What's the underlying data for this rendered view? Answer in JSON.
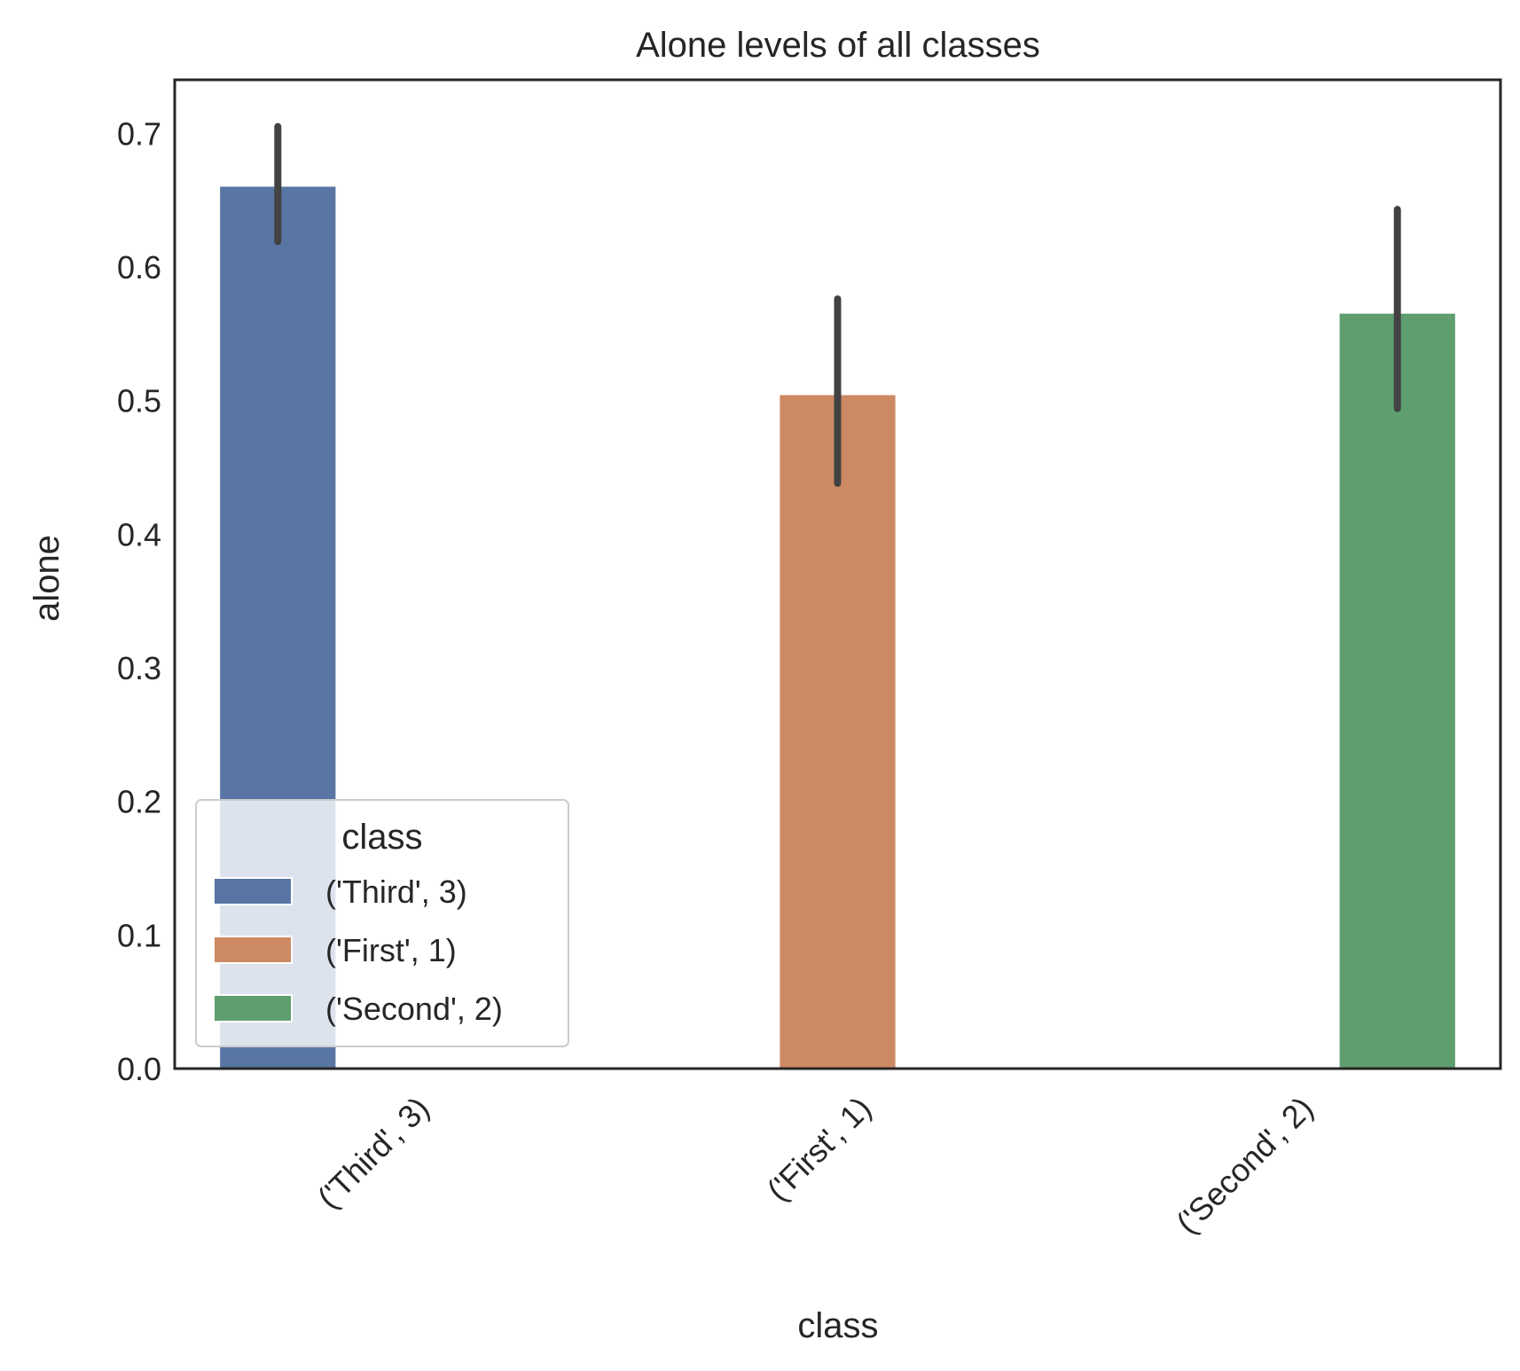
{
  "chart_data": {
    "type": "bar",
    "title": "Alone levels of all classes",
    "xlabel": "class",
    "ylabel": "alone",
    "categories": [
      "('Third', 3)",
      "('First', 1)",
      "('Second', 2)"
    ],
    "values": [
      0.66,
      0.504,
      0.565
    ],
    "error_bars": [
      {
        "low": 0.619,
        "high": 0.705
      },
      {
        "low": 0.438,
        "high": 0.576
      },
      {
        "low": 0.494,
        "high": 0.643
      }
    ],
    "colors": [
      "#5875a4",
      "#cc8963",
      "#5f9e6e"
    ],
    "error_bar_color": "#424242",
    "ylim": [
      0,
      0.74
    ],
    "yticks": [
      0.0,
      0.1,
      0.2,
      0.3,
      0.4,
      0.5,
      0.6,
      0.7
    ],
    "ytick_labels": [
      "0.0",
      "0.1",
      "0.2",
      "0.3",
      "0.4",
      "0.5",
      "0.6",
      "0.7"
    ],
    "grid": false,
    "legend": {
      "title": "class",
      "position": "lower-left",
      "entries": [
        "('Third', 3)",
        "('First', 1)",
        "('Second', 2)"
      ]
    }
  }
}
